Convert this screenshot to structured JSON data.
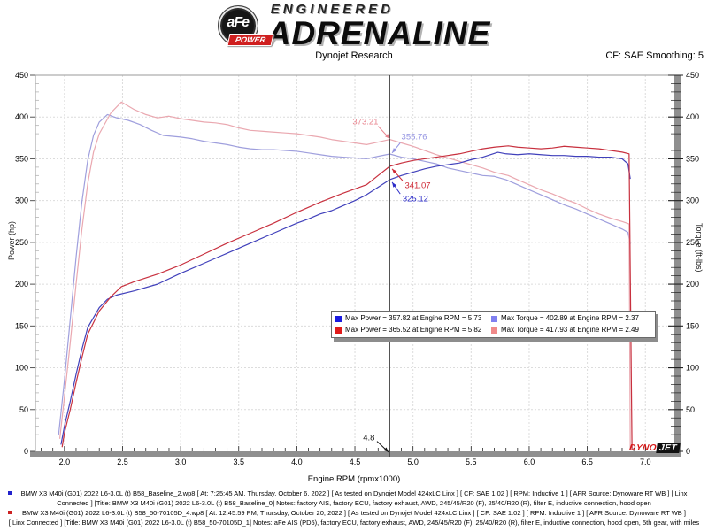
{
  "logo": {
    "afe": "aFe",
    "power": "POWER",
    "engineered": "ENGINEERED",
    "adrenaline": "ADRENALINE"
  },
  "header": {
    "title": "Dynojet Research",
    "cf": "CF: SAE Smoothing: 5"
  },
  "chart_data": {
    "type": "line",
    "title": "Dynojet Research",
    "xlabel": "Engine RPM (rpmx1000)",
    "ylabel_left": "Power (hp)",
    "ylabel_right": "Torque (ft-lbs)",
    "x_range": [
      1.75,
      7.28
    ],
    "y_range": [
      0,
      450
    ],
    "x_major_ticks": [
      2.0,
      2.5,
      3.0,
      3.5,
      4.0,
      4.5,
      5.0,
      5.5,
      6.0,
      6.5,
      7.0
    ],
    "x_minor_step": 0.1,
    "y_major_step": 50,
    "y_minor_step": 10,
    "grid": true,
    "legend_position": "bottom-center",
    "cursor_rpm": 4.8,
    "cursor_label": {
      "text": "4.8",
      "text_at": [
        4.57,
        13
      ],
      "arrow_from": [
        4.69,
        12
      ],
      "arrow_to": [
        4.79,
        -1
      ],
      "color": "#111111"
    },
    "series": [
      {
        "name": "torque-baseline",
        "color": "#9f9fdd",
        "width": 1.2,
        "points": [
          [
            1.95,
            20
          ],
          [
            2.0,
            85
          ],
          [
            2.05,
            158
          ],
          [
            2.1,
            232
          ],
          [
            2.15,
            298
          ],
          [
            2.2,
            348
          ],
          [
            2.25,
            378
          ],
          [
            2.3,
            394
          ],
          [
            2.37,
            402.89
          ],
          [
            2.45,
            399
          ],
          [
            2.55,
            396
          ],
          [
            2.65,
            391
          ],
          [
            2.75,
            384
          ],
          [
            2.85,
            378
          ],
          [
            3.0,
            376
          ],
          [
            3.1,
            374
          ],
          [
            3.2,
            371
          ],
          [
            3.3,
            369
          ],
          [
            3.4,
            367
          ],
          [
            3.5,
            364
          ],
          [
            3.6,
            362
          ],
          [
            3.7,
            361
          ],
          [
            3.8,
            361
          ],
          [
            3.9,
            360
          ],
          [
            4.0,
            359
          ],
          [
            4.1,
            357
          ],
          [
            4.2,
            355
          ],
          [
            4.3,
            353
          ],
          [
            4.4,
            352
          ],
          [
            4.5,
            351
          ],
          [
            4.6,
            350
          ],
          [
            4.7,
            353
          ],
          [
            4.8,
            355.76
          ],
          [
            4.9,
            352
          ],
          [
            5.0,
            350
          ],
          [
            5.1,
            347
          ],
          [
            5.2,
            344
          ],
          [
            5.3,
            339
          ],
          [
            5.4,
            336
          ],
          [
            5.5,
            333
          ],
          [
            5.6,
            330
          ],
          [
            5.7,
            329
          ],
          [
            5.8,
            325
          ],
          [
            5.9,
            319
          ],
          [
            6.0,
            313
          ],
          [
            6.1,
            307
          ],
          [
            6.2,
            301
          ],
          [
            6.3,
            295
          ],
          [
            6.4,
            290
          ],
          [
            6.5,
            284
          ],
          [
            6.6,
            278
          ],
          [
            6.7,
            272
          ],
          [
            6.8,
            266
          ],
          [
            6.85,
            262
          ],
          [
            6.87,
            248
          ]
        ]
      },
      {
        "name": "torque-afe",
        "color": "#eaa8b0",
        "width": 1.2,
        "points": [
          [
            1.96,
            15
          ],
          [
            2.0,
            65
          ],
          [
            2.05,
            130
          ],
          [
            2.1,
            200
          ],
          [
            2.15,
            265
          ],
          [
            2.2,
            320
          ],
          [
            2.25,
            358
          ],
          [
            2.3,
            380
          ],
          [
            2.4,
            405
          ],
          [
            2.49,
            417.93
          ],
          [
            2.6,
            409
          ],
          [
            2.7,
            403
          ],
          [
            2.8,
            399
          ],
          [
            2.9,
            401
          ],
          [
            3.0,
            398
          ],
          [
            3.1,
            396
          ],
          [
            3.2,
            394
          ],
          [
            3.3,
            393
          ],
          [
            3.4,
            391
          ],
          [
            3.5,
            387
          ],
          [
            3.6,
            384
          ],
          [
            3.7,
            383
          ],
          [
            3.8,
            382
          ],
          [
            3.9,
            381
          ],
          [
            4.0,
            380
          ],
          [
            4.1,
            378
          ],
          [
            4.2,
            376
          ],
          [
            4.3,
            373
          ],
          [
            4.4,
            371
          ],
          [
            4.5,
            369
          ],
          [
            4.6,
            367
          ],
          [
            4.7,
            370
          ],
          [
            4.8,
            373.21
          ],
          [
            4.9,
            369
          ],
          [
            5.0,
            365
          ],
          [
            5.1,
            360
          ],
          [
            5.2,
            355
          ],
          [
            5.3,
            351
          ],
          [
            5.4,
            347
          ],
          [
            5.5,
            343
          ],
          [
            5.6,
            339
          ],
          [
            5.7,
            334
          ],
          [
            5.82,
            330
          ],
          [
            5.9,
            325
          ],
          [
            6.0,
            319
          ],
          [
            6.1,
            313
          ],
          [
            6.2,
            308
          ],
          [
            6.3,
            302
          ],
          [
            6.4,
            297
          ],
          [
            6.5,
            290
          ],
          [
            6.6,
            284
          ],
          [
            6.7,
            279
          ],
          [
            6.8,
            275
          ],
          [
            6.86,
            272
          ],
          [
            6.87,
            2
          ]
        ]
      },
      {
        "name": "power-baseline",
        "color": "#4040bb",
        "width": 1.2,
        "points": [
          [
            1.97,
            8
          ],
          [
            2.0,
            30
          ],
          [
            2.05,
            60
          ],
          [
            2.1,
            92
          ],
          [
            2.15,
            122
          ],
          [
            2.2,
            148
          ],
          [
            2.3,
            172
          ],
          [
            2.37,
            182
          ],
          [
            2.45,
            187
          ],
          [
            2.6,
            192
          ],
          [
            2.8,
            200
          ],
          [
            3.0,
            213
          ],
          [
            3.2,
            225
          ],
          [
            3.4,
            237
          ],
          [
            3.6,
            249
          ],
          [
            3.8,
            261
          ],
          [
            4.0,
            273
          ],
          [
            4.1,
            278
          ],
          [
            4.2,
            284
          ],
          [
            4.3,
            288
          ],
          [
            4.4,
            294
          ],
          [
            4.5,
            300
          ],
          [
            4.6,
            307
          ],
          [
            4.7,
            316
          ],
          [
            4.8,
            325.12
          ],
          [
            4.9,
            330
          ],
          [
            5.0,
            334
          ],
          [
            5.1,
            338
          ],
          [
            5.2,
            341
          ],
          [
            5.3,
            343
          ],
          [
            5.4,
            345
          ],
          [
            5.5,
            349
          ],
          [
            5.6,
            352
          ],
          [
            5.73,
            357.82
          ],
          [
            5.8,
            356
          ],
          [
            5.9,
            355
          ],
          [
            6.0,
            356
          ],
          [
            6.1,
            355
          ],
          [
            6.2,
            354
          ],
          [
            6.3,
            354
          ],
          [
            6.4,
            353
          ],
          [
            6.5,
            353
          ],
          [
            6.6,
            352
          ],
          [
            6.7,
            352
          ],
          [
            6.8,
            350
          ],
          [
            6.85,
            344
          ],
          [
            6.87,
            326
          ]
        ]
      },
      {
        "name": "power-afe",
        "color": "#c8303e",
        "width": 1.2,
        "points": [
          [
            1.98,
            5
          ],
          [
            2.0,
            22
          ],
          [
            2.05,
            50
          ],
          [
            2.1,
            82
          ],
          [
            2.15,
            112
          ],
          [
            2.2,
            140
          ],
          [
            2.3,
            168
          ],
          [
            2.4,
            185
          ],
          [
            2.49,
            197
          ],
          [
            2.6,
            203
          ],
          [
            2.8,
            212
          ],
          [
            3.0,
            223
          ],
          [
            3.2,
            236
          ],
          [
            3.4,
            249
          ],
          [
            3.6,
            261
          ],
          [
            3.8,
            273
          ],
          [
            4.0,
            286
          ],
          [
            4.2,
            298
          ],
          [
            4.4,
            309
          ],
          [
            4.6,
            319
          ],
          [
            4.7,
            330
          ],
          [
            4.8,
            341.07
          ],
          [
            4.9,
            345
          ],
          [
            5.0,
            348
          ],
          [
            5.1,
            350
          ],
          [
            5.2,
            352
          ],
          [
            5.3,
            354
          ],
          [
            5.4,
            356
          ],
          [
            5.5,
            359
          ],
          [
            5.6,
            362
          ],
          [
            5.7,
            364
          ],
          [
            5.82,
            365.52
          ],
          [
            5.9,
            364
          ],
          [
            6.0,
            363
          ],
          [
            6.1,
            362
          ],
          [
            6.2,
            363
          ],
          [
            6.3,
            365
          ],
          [
            6.4,
            364
          ],
          [
            6.5,
            363
          ],
          [
            6.6,
            362
          ],
          [
            6.7,
            360
          ],
          [
            6.8,
            358
          ],
          [
            6.86,
            356
          ],
          [
            6.885,
            2
          ]
        ]
      }
    ],
    "annotations": [
      {
        "text": "373.21",
        "color": "#e8838e",
        "text_at": [
          4.48,
          391
        ],
        "arrow_from": [
          4.7,
          389
        ],
        "arrow_to": [
          4.8,
          374
        ]
      },
      {
        "text": "355.76",
        "color": "#9393e2",
        "text_at": [
          4.9,
          373
        ],
        "arrow_from": [
          4.89,
          369
        ],
        "arrow_to": [
          4.82,
          357
        ]
      },
      {
        "text": "341.07",
        "color": "#cf2a36",
        "text_at": [
          4.93,
          315
        ],
        "arrow_from": [
          4.91,
          324
        ],
        "arrow_to": [
          4.82,
          338
        ]
      },
      {
        "text": "325.12",
        "color": "#2c2cc8",
        "text_at": [
          4.91,
          299
        ],
        "arrow_from": [
          4.89,
          308
        ],
        "arrow_to": [
          4.82,
          322
        ]
      }
    ],
    "legend": [
      {
        "color": "#1a1ae0",
        "label": "Max Power = 357.82 at Engine RPM = 5.73"
      },
      {
        "color": "#8080f0",
        "label": "Max Torque = 402.89 at Engine RPM = 2.37"
      },
      {
        "color": "#e01a1a",
        "label": "Max Power = 365.52 at Engine RPM = 5.82"
      },
      {
        "color": "#f08a8a",
        "label": "Max Torque = 417.93 at Engine RPM = 2.49"
      }
    ],
    "watermark": {
      "dyno": "DYNO",
      "jet": "JET"
    }
  },
  "footer": {
    "lines": [
      {
        "bullet": "#2222cc",
        "text": "BMW X3 M40i (G01) 2022 L6-3.0L (t) B58_Baseline_2.wp8 [ At: 7:25:45 AM, Thursday, October 6, 2022 ] [ As tested on Dynojet Model 424xLC Linx ] [ CF: SAE 1.02 ] [ RPM: Inductive 1 ] [ AFR Source: Dynoware RT WB ] [ Linx"
      },
      {
        "bullet": null,
        "text": "Connected ] [Title: BMW X3 M40i (G01) 2022 L6-3.0L (t) B58_Baseline_0]  Notes: factory AIS, factory ECU, factory exhaust, AWD, 245/45/R20 (F), 25/40/R20 (R), filter E, inductive connection, hood open"
      },
      {
        "bullet": "#cc2222",
        "text": "BMW X3 M40i (G01) 2022 L6-3.0L (t) B58_50-70105D_4.wp8 [ At: 12:45:59 PM, Thursday, October 20, 2022 ] [ As tested on Dynojet Model 424xLC Linx ] [ CF: SAE 1.02 ] [ RPM: Inductive 1 ] [ AFR Source: Dynoware RT WB ]"
      },
      {
        "bullet": null,
        "text": "[ Linx Connected ] [Title: BMW X3 M40i (G01) 2022 L6-3.0L (t) B58_50-70105D_1]  Notes: aFe AIS (PD5), factory ECU, factory exhaust, AWD, 245/45/R20 (F), 25/40/R20 (R), filter E, inductive connection, hood open, 5th gear, with miles"
      }
    ]
  }
}
